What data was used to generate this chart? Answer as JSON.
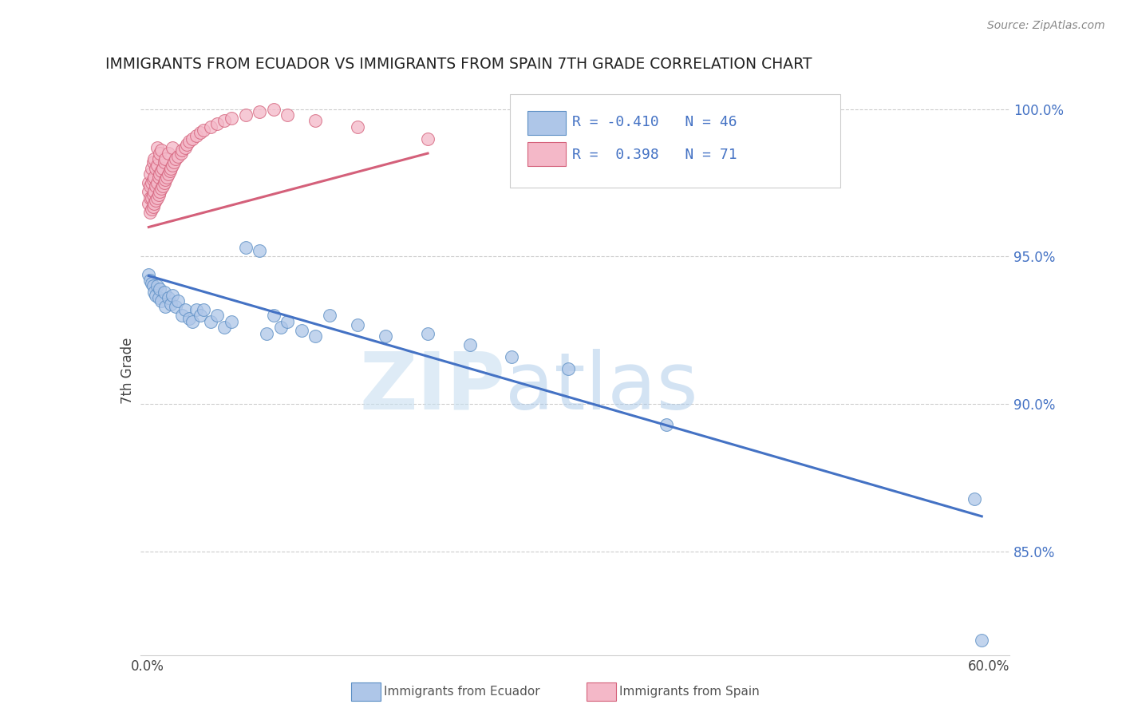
{
  "title": "IMMIGRANTS FROM ECUADOR VS IMMIGRANTS FROM SPAIN 7TH GRADE CORRELATION CHART",
  "source": "Source: ZipAtlas.com",
  "ylabel": "7th Grade",
  "watermark_zip": "ZIP",
  "watermark_atlas": "atlas",
  "ecuador_color": "#aec6e8",
  "ecuador_edge_color": "#5b8ec4",
  "ecuador_line_color": "#4472c4",
  "spain_color": "#f4b8c8",
  "spain_edge_color": "#d4607a",
  "spain_line_color": "#d4607a",
  "ecuador_R": -0.41,
  "ecuador_N": 46,
  "spain_R": 0.398,
  "spain_N": 71,
  "legend_label_ecuador": "Immigrants from Ecuador",
  "legend_label_spain": "Immigrants from Spain",
  "xlim": [
    -0.005,
    0.615
  ],
  "ylim": [
    0.815,
    1.008
  ],
  "yticks": [
    0.85,
    0.9,
    0.95,
    1.0
  ],
  "ytick_labels": [
    "85.0%",
    "90.0%",
    "95.0%",
    "100.0%"
  ],
  "ecuador_x": [
    0.001,
    0.002,
    0.003,
    0.004,
    0.005,
    0.006,
    0.007,
    0.008,
    0.009,
    0.01,
    0.012,
    0.013,
    0.015,
    0.017,
    0.018,
    0.02,
    0.022,
    0.025,
    0.027,
    0.03,
    0.032,
    0.035,
    0.038,
    0.04,
    0.045,
    0.05,
    0.055,
    0.06,
    0.07,
    0.08,
    0.085,
    0.09,
    0.095,
    0.1,
    0.11,
    0.12,
    0.13,
    0.15,
    0.17,
    0.2,
    0.23,
    0.26,
    0.3,
    0.37,
    0.59,
    0.595
  ],
  "ecuador_y": [
    0.944,
    0.942,
    0.941,
    0.94,
    0.938,
    0.937,
    0.94,
    0.936,
    0.939,
    0.935,
    0.938,
    0.933,
    0.936,
    0.934,
    0.937,
    0.933,
    0.935,
    0.93,
    0.932,
    0.929,
    0.928,
    0.932,
    0.93,
    0.932,
    0.928,
    0.93,
    0.926,
    0.928,
    0.953,
    0.952,
    0.924,
    0.93,
    0.926,
    0.928,
    0.925,
    0.923,
    0.93,
    0.927,
    0.923,
    0.924,
    0.92,
    0.916,
    0.912,
    0.893,
    0.868,
    0.82
  ],
  "spain_x": [
    0.001,
    0.001,
    0.001,
    0.002,
    0.002,
    0.002,
    0.002,
    0.003,
    0.003,
    0.003,
    0.003,
    0.004,
    0.004,
    0.004,
    0.004,
    0.005,
    0.005,
    0.005,
    0.005,
    0.006,
    0.006,
    0.006,
    0.007,
    0.007,
    0.007,
    0.007,
    0.008,
    0.008,
    0.008,
    0.009,
    0.009,
    0.009,
    0.01,
    0.01,
    0.01,
    0.011,
    0.011,
    0.012,
    0.012,
    0.013,
    0.013,
    0.014,
    0.015,
    0.015,
    0.016,
    0.017,
    0.018,
    0.018,
    0.019,
    0.02,
    0.022,
    0.024,
    0.025,
    0.027,
    0.028,
    0.03,
    0.032,
    0.035,
    0.038,
    0.04,
    0.045,
    0.05,
    0.055,
    0.06,
    0.07,
    0.08,
    0.09,
    0.1,
    0.12,
    0.15,
    0.2
  ],
  "spain_y": [
    0.968,
    0.972,
    0.975,
    0.965,
    0.97,
    0.974,
    0.978,
    0.966,
    0.97,
    0.975,
    0.98,
    0.967,
    0.971,
    0.976,
    0.982,
    0.968,
    0.972,
    0.977,
    0.983,
    0.969,
    0.974,
    0.98,
    0.97,
    0.975,
    0.981,
    0.987,
    0.971,
    0.977,
    0.983,
    0.972,
    0.978,
    0.985,
    0.973,
    0.979,
    0.986,
    0.974,
    0.98,
    0.975,
    0.982,
    0.976,
    0.983,
    0.977,
    0.978,
    0.985,
    0.979,
    0.98,
    0.981,
    0.987,
    0.982,
    0.983,
    0.984,
    0.985,
    0.986,
    0.987,
    0.988,
    0.989,
    0.99,
    0.991,
    0.992,
    0.993,
    0.994,
    0.995,
    0.996,
    0.997,
    0.998,
    0.999,
    1.0,
    0.998,
    0.996,
    0.994,
    0.99
  ],
  "ecu_trend_x": [
    0.001,
    0.595
  ],
  "ecu_trend_y": [
    0.9435,
    0.862
  ],
  "spa_trend_x": [
    0.001,
    0.2
  ],
  "spa_trend_y": [
    0.96,
    0.985
  ]
}
